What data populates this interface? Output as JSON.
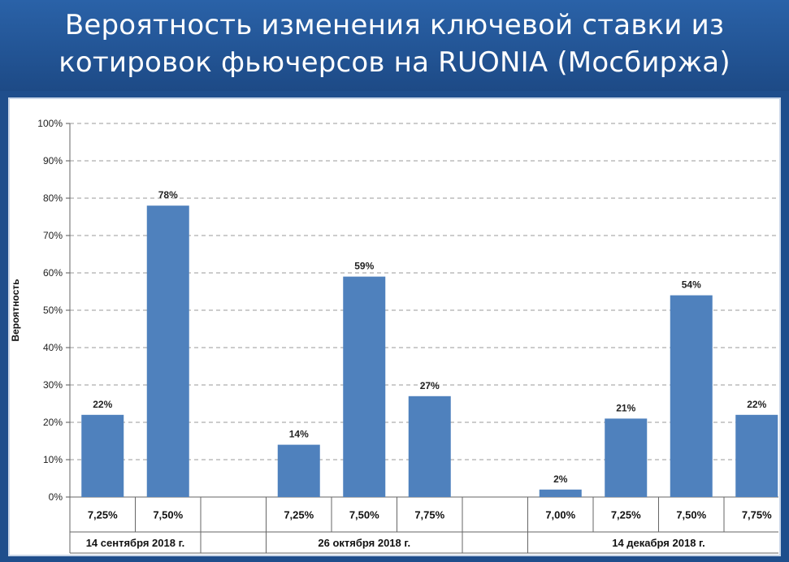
{
  "title": {
    "line1": "Вероятность изменения ключевой ставки из",
    "line2": "котировок фьючерсов на RUONIA (Мосбиржа)"
  },
  "chart_data": {
    "type": "bar",
    "ylabel": "Вероятность",
    "ylim": [
      0,
      100
    ],
    "yticks": [
      "0%",
      "10%",
      "20%",
      "30%",
      "40%",
      "50%",
      "60%",
      "70%",
      "80%",
      "90%",
      "100%"
    ],
    "grid": true,
    "bar_color": "#4f81bd",
    "groups": [
      {
        "name": "14 сентября 2018 г.",
        "categories": [
          "7,25%",
          "7,50%"
        ],
        "values": [
          22,
          78
        ],
        "labels": [
          "22%",
          "78%"
        ]
      },
      {
        "name": "26 октября 2018 г.",
        "categories": [
          "7,25%",
          "7,50%",
          "7,75%"
        ],
        "values": [
          14,
          59,
          27
        ],
        "labels": [
          "14%",
          "59%",
          "27%"
        ]
      },
      {
        "name": "14 декабря 2018 г.",
        "categories": [
          "7,00%",
          "7,25%",
          "7,50%",
          "7,75%"
        ],
        "values": [
          2,
          21,
          54,
          22
        ],
        "labels": [
          "2%",
          "21%",
          "54%",
          "22%"
        ]
      }
    ]
  }
}
